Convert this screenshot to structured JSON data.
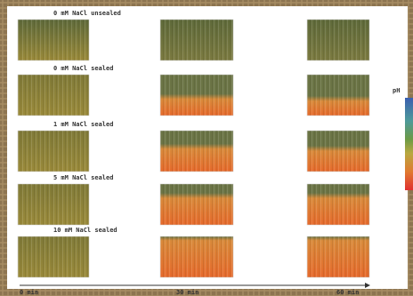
{
  "rows": [
    {
      "label": "0 mM NaCl unsealed"
    },
    {
      "label": "0 mM NaCl sealed"
    },
    {
      "label": "1 mM NaCl sealed"
    },
    {
      "label": "5 mM NaCl sealed"
    },
    {
      "label": "10 mM NaCl sealed"
    }
  ],
  "time_axis": {
    "labels": [
      "0 min",
      "30 min",
      "60 min"
    ]
  },
  "colorbar": {
    "title": "pH"
  }
}
